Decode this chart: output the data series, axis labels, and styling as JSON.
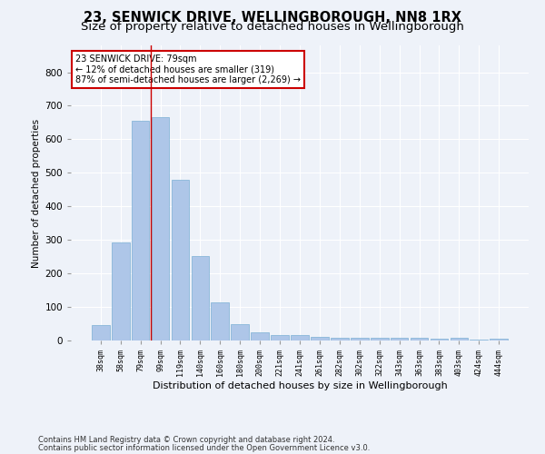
{
  "title": "23, SENWICK DRIVE, WELLINGBOROUGH, NN8 1RX",
  "subtitle": "Size of property relative to detached houses in Wellingborough",
  "xlabel": "Distribution of detached houses by size in Wellingborough",
  "ylabel": "Number of detached properties",
  "categories": [
    "38sqm",
    "58sqm",
    "79sqm",
    "99sqm",
    "119sqm",
    "140sqm",
    "160sqm",
    "180sqm",
    "200sqm",
    "221sqm",
    "241sqm",
    "261sqm",
    "282sqm",
    "302sqm",
    "322sqm",
    "343sqm",
    "363sqm",
    "383sqm",
    "403sqm",
    "424sqm",
    "444sqm"
  ],
  "values": [
    45,
    293,
    655,
    665,
    480,
    252,
    115,
    50,
    25,
    15,
    15,
    10,
    8,
    8,
    8,
    8,
    8,
    5,
    8,
    3,
    5
  ],
  "bar_color": "#aec6e8",
  "bar_edge_color": "#7aafd4",
  "red_line_x": 2.5,
  "annotation_title": "23 SENWICK DRIVE: 79sqm",
  "annotation_line1": "← 12% of detached houses are smaller (319)",
  "annotation_line2": "87% of semi-detached houses are larger (2,269) →",
  "annotation_box_color": "#ffffff",
  "annotation_box_edge_color": "#cc0000",
  "footnote1": "Contains HM Land Registry data © Crown copyright and database right 2024.",
  "footnote2": "Contains public sector information licensed under the Open Government Licence v3.0.",
  "ylim": [
    0,
    880
  ],
  "yticks": [
    0,
    100,
    200,
    300,
    400,
    500,
    600,
    700,
    800
  ],
  "background_color": "#eef2f9",
  "grid_color": "#ffffff",
  "title_fontsize": 10.5,
  "subtitle_fontsize": 9.5
}
